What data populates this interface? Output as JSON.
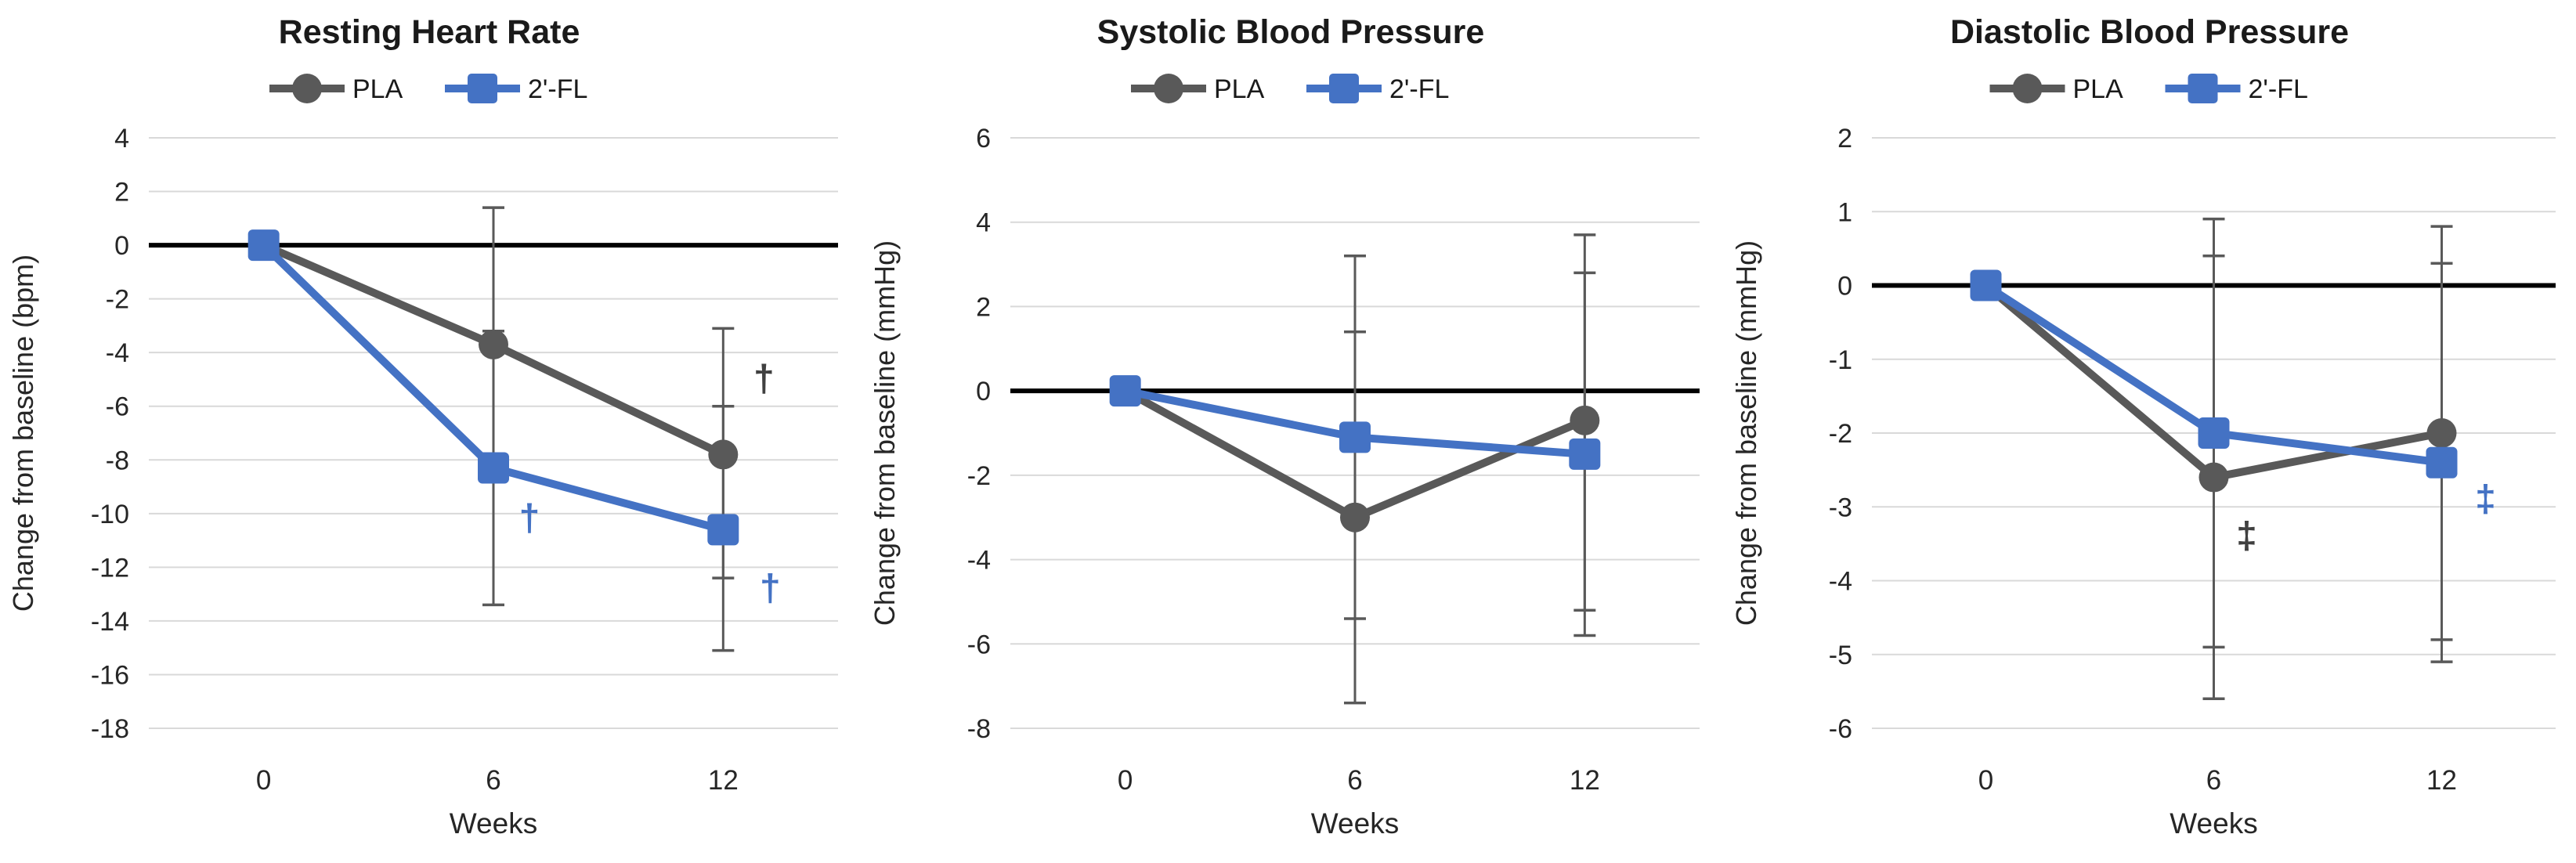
{
  "page": {
    "background": "#ffffff"
  },
  "style": {
    "accent_blue": "#4472C4",
    "series_gray": "#595959",
    "error_bar_color": "#595959",
    "gridline_color": "#D9D9D9",
    "zero_line_color": "#000000",
    "title_color": "#1a1a1a",
    "tick_label_color": "#262626",
    "dagger_dark_color": "#404040"
  },
  "shared": {
    "xlabel": "Weeks",
    "x_tick_labels": [
      "0",
      "6",
      "12"
    ],
    "legend": [
      {
        "label": "PLA",
        "color": "#595959",
        "marker": "circle"
      },
      {
        "label": "2'-FL",
        "color": "#4472C4",
        "marker": "square"
      }
    ]
  },
  "chart_data": [
    {
      "id": "resting-heart-rate",
      "type": "line",
      "title": "Resting Heart Rate",
      "ylabel": "Change from baseline (bpm)",
      "xlabel": "Weeks",
      "x": [
        0,
        6,
        12
      ],
      "x_tick_labels": [
        "0",
        "6",
        "12"
      ],
      "ylim": [
        -18,
        4
      ],
      "ytick_step": 2,
      "grid": true,
      "legend_position": "top",
      "series": [
        {
          "name": "PLA",
          "color": "#595959",
          "marker": "circle",
          "values": [
            0,
            -3.7,
            -7.8
          ],
          "err_high": [
            null,
            1.4,
            -3.1
          ],
          "err_low": [
            null,
            -8.8,
            -12.4
          ]
        },
        {
          "name": "2'-FL",
          "color": "#4472C4",
          "marker": "square",
          "values": [
            0,
            -8.3,
            -10.6
          ],
          "err_high": [
            null,
            -3.2,
            -6.0
          ],
          "err_low": [
            null,
            -13.4,
            -15.1
          ]
        }
      ],
      "annotations": [
        {
          "text": "†",
          "at_x": 12,
          "y": -5.0,
          "dx": 52,
          "color": "#404040"
        },
        {
          "text": "†",
          "at_x": 6,
          "y": -10.2,
          "dx": 46,
          "color": "#4472C4"
        },
        {
          "text": "†",
          "at_x": 12,
          "y": -12.8,
          "dx": 60,
          "color": "#4472C4"
        }
      ]
    },
    {
      "id": "systolic-blood-pressure",
      "type": "line",
      "title": "Systolic Blood Pressure",
      "ylabel": "Change from baseline (mmHg)",
      "xlabel": "Weeks",
      "x": [
        0,
        6,
        12
      ],
      "x_tick_labels": [
        "0",
        "6",
        "12"
      ],
      "ylim": [
        -8,
        6
      ],
      "ytick_step": 2,
      "grid": true,
      "legend_position": "top",
      "series": [
        {
          "name": "PLA",
          "color": "#595959",
          "marker": "circle",
          "values": [
            0,
            -3.0,
            -0.7
          ],
          "err_high": [
            null,
            1.4,
            3.7
          ],
          "err_low": [
            null,
            -7.4,
            -5.2
          ]
        },
        {
          "name": "2'-FL",
          "color": "#4472C4",
          "marker": "square",
          "values": [
            0,
            -1.1,
            -1.5
          ],
          "err_high": [
            null,
            3.2,
            2.8
          ],
          "err_low": [
            null,
            -5.4,
            -5.8
          ]
        }
      ],
      "annotations": []
    },
    {
      "id": "diastolic-blood-pressure",
      "type": "line",
      "title": "Diastolic Blood Pressure",
      "ylabel": "Change from baseline (mmHg)",
      "xlabel": "Weeks",
      "x": [
        0,
        6,
        12
      ],
      "x_tick_labels": [
        "0",
        "6",
        "12"
      ],
      "ylim": [
        -6,
        2
      ],
      "ytick_step": 1,
      "grid": true,
      "legend_position": "top",
      "series": [
        {
          "name": "PLA",
          "color": "#595959",
          "marker": "circle",
          "values": [
            0,
            -2.6,
            -2.0
          ],
          "err_high": [
            null,
            0.4,
            0.8
          ],
          "err_low": [
            null,
            -5.6,
            -4.8
          ]
        },
        {
          "name": "2'-FL",
          "color": "#4472C4",
          "marker": "square",
          "values": [
            0,
            -2.0,
            -2.4
          ],
          "err_high": [
            null,
            0.9,
            0.3
          ],
          "err_low": [
            null,
            -4.9,
            -5.1
          ]
        }
      ],
      "annotations": [
        {
          "text": "‡",
          "at_x": 6,
          "y": -3.4,
          "dx": 42,
          "color": "#404040"
        },
        {
          "text": "‡",
          "at_x": 12,
          "y": -2.9,
          "dx": 56,
          "color": "#4472C4"
        }
      ]
    }
  ]
}
